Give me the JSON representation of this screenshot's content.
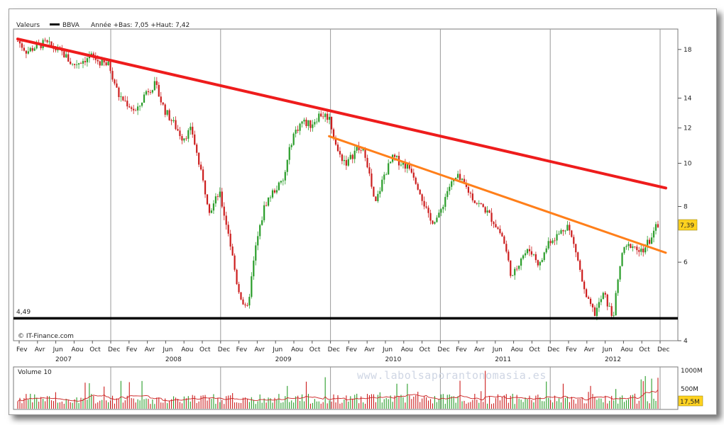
{
  "header": {
    "label": "Valeurs",
    "symbol": "BBVA",
    "range_text": "Année +Bas: 7,05 +Haut: 7,42"
  },
  "source": "© IT-Finance.com",
  "watermark": "www.labolsaporantonomasia.es",
  "price_badge": "7,39",
  "support_label": "4,49",
  "volume": {
    "label": "Volume 10",
    "ticks": [
      "1000M",
      "500M"
    ],
    "badge": "17,5M"
  },
  "colors": {
    "up": "#2a9d2a",
    "down": "#cc1e1e",
    "resistance_line": "#ee1c1c",
    "secondary_line": "#ff7f1a",
    "support_line": "#000000",
    "price_badge_bg": "#ffd21f",
    "volume_ma": "#cc2222"
  },
  "chart_data": {
    "type": "candlestick",
    "symbol": "BBVA",
    "y_scale": "log",
    "ylim": [
      4,
      20
    ],
    "y_ticks": [
      4,
      6,
      8,
      10,
      12,
      14,
      18
    ],
    "x_range": [
      "2007-02",
      "2012-12"
    ],
    "month_labels": [
      "Fev",
      "Avr",
      "Jun",
      "Aou",
      "Oct",
      "Dec",
      "Fev",
      "Avr",
      "Jun",
      "Aou",
      "Oct",
      "Dec",
      "Fev",
      "Avr",
      "Jun",
      "Aou",
      "Oct",
      "Dec",
      "Fev",
      "Avr",
      "Jun",
      "Aou",
      "Oct",
      "Dec",
      "Fev",
      "Avr",
      "Jun",
      "Aou",
      "Oct",
      "Dec",
      "Fev",
      "Avr",
      "Jun",
      "Aou",
      "Oct",
      "Dec"
    ],
    "year_labels": [
      "2007",
      "2008",
      "2009",
      "2010",
      "2011",
      "2012"
    ],
    "price_path": [
      {
        "date": "2007-02",
        "close": 18.8
      },
      {
        "date": "2007-03",
        "close": 17.8
      },
      {
        "date": "2007-04",
        "close": 18.3
      },
      {
        "date": "2007-05",
        "close": 18.6
      },
      {
        "date": "2007-06",
        "close": 18.1
      },
      {
        "date": "2007-07",
        "close": 17.6
      },
      {
        "date": "2007-08",
        "close": 16.6
      },
      {
        "date": "2007-09",
        "close": 17.0
      },
      {
        "date": "2007-10",
        "close": 17.4
      },
      {
        "date": "2007-11",
        "close": 16.8
      },
      {
        "date": "2007-12",
        "close": 16.6
      },
      {
        "date": "2008-01",
        "close": 14.2
      },
      {
        "date": "2008-02",
        "close": 13.6
      },
      {
        "date": "2008-03",
        "close": 13.0
      },
      {
        "date": "2008-04",
        "close": 14.5
      },
      {
        "date": "2008-05",
        "close": 15.0
      },
      {
        "date": "2008-06",
        "close": 13.2
      },
      {
        "date": "2008-07",
        "close": 12.3
      },
      {
        "date": "2008-08",
        "close": 11.4
      },
      {
        "date": "2008-09",
        "close": 11.9
      },
      {
        "date": "2008-10",
        "close": 9.5
      },
      {
        "date": "2008-11",
        "close": 7.8
      },
      {
        "date": "2008-12",
        "close": 8.6
      },
      {
        "date": "2009-01",
        "close": 7.0
      },
      {
        "date": "2009-02",
        "close": 5.3
      },
      {
        "date": "2009-03",
        "close": 4.6
      },
      {
        "date": "2009-04",
        "close": 6.5
      },
      {
        "date": "2009-05",
        "close": 8.1
      },
      {
        "date": "2009-06",
        "close": 8.7
      },
      {
        "date": "2009-07",
        "close": 9.1
      },
      {
        "date": "2009-08",
        "close": 11.5
      },
      {
        "date": "2009-09",
        "close": 12.4
      },
      {
        "date": "2009-10",
        "close": 12.2
      },
      {
        "date": "2009-11",
        "close": 12.9
      },
      {
        "date": "2009-12",
        "close": 12.7
      },
      {
        "date": "2010-01",
        "close": 10.5
      },
      {
        "date": "2010-02",
        "close": 10.0
      },
      {
        "date": "2010-03",
        "close": 10.8
      },
      {
        "date": "2010-04",
        "close": 10.5
      },
      {
        "date": "2010-05",
        "close": 8.0
      },
      {
        "date": "2010-06",
        "close": 9.4
      },
      {
        "date": "2010-07",
        "close": 10.3
      },
      {
        "date": "2010-08",
        "close": 10.0
      },
      {
        "date": "2010-09",
        "close": 9.7
      },
      {
        "date": "2010-10",
        "close": 8.6
      },
      {
        "date": "2010-11",
        "close": 7.4
      },
      {
        "date": "2010-12",
        "close": 7.6
      },
      {
        "date": "2011-01",
        "close": 8.8
      },
      {
        "date": "2011-02",
        "close": 9.3
      },
      {
        "date": "2011-03",
        "close": 8.8
      },
      {
        "date": "2011-04",
        "close": 8.2
      },
      {
        "date": "2011-05",
        "close": 7.9
      },
      {
        "date": "2011-06",
        "close": 7.4
      },
      {
        "date": "2011-07",
        "close": 6.8
      },
      {
        "date": "2011-08",
        "close": 5.5
      },
      {
        "date": "2011-09",
        "close": 6.2
      },
      {
        "date": "2011-10",
        "close": 6.4
      },
      {
        "date": "2011-11",
        "close": 5.9
      },
      {
        "date": "2011-12",
        "close": 6.7
      },
      {
        "date": "2012-01",
        "close": 6.9
      },
      {
        "date": "2012-02",
        "close": 7.3
      },
      {
        "date": "2012-03",
        "close": 6.3
      },
      {
        "date": "2012-04",
        "close": 5.0
      },
      {
        "date": "2012-05",
        "close": 4.6
      },
      {
        "date": "2012-06",
        "close": 5.1
      },
      {
        "date": "2012-07",
        "close": 4.5
      },
      {
        "date": "2012-08",
        "close": 6.3
      },
      {
        "date": "2012-09",
        "close": 6.6
      },
      {
        "date": "2012-10",
        "close": 6.3
      },
      {
        "date": "2012-11",
        "close": 6.7
      },
      {
        "date": "2012-12",
        "close": 7.39
      }
    ],
    "trendlines": [
      {
        "name": "resistance",
        "from": {
          "date": "2007-02",
          "price": 19.0
        },
        "to": {
          "date": "2012-12",
          "price": 8.8
        }
      },
      {
        "name": "secondary",
        "from": {
          "date": "2009-12",
          "price": 11.5
        },
        "to": {
          "date": "2012-12",
          "price": 6.3
        }
      },
      {
        "name": "support",
        "price": 4.49
      }
    ],
    "volume_scale_max": 1000
  }
}
